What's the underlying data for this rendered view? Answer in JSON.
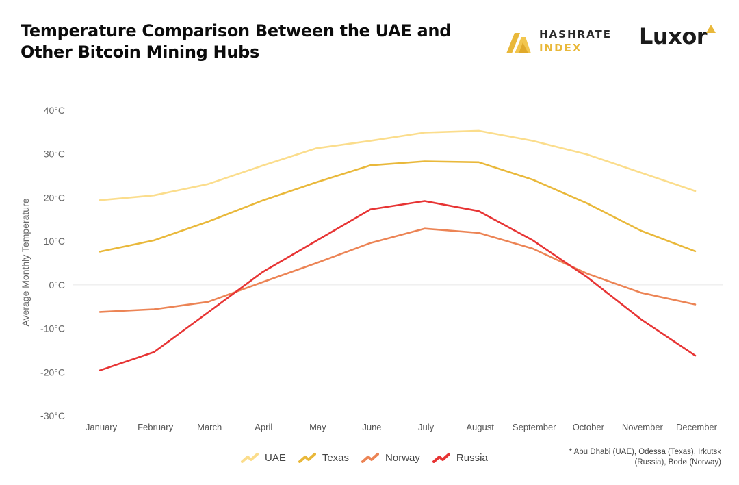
{
  "header": {
    "title_line1": "Temperature Comparison Between the UAE and",
    "title_line2": "Other Bitcoin Mining Hubs"
  },
  "logos": {
    "hashrate_line1": "HASHRATE",
    "hashrate_line2": "INDEX",
    "luxor": "Luxor"
  },
  "colors": {
    "uae": "#fbdd8c",
    "texas": "#e9b83a",
    "norway": "#ec8455",
    "russia": "#e73434",
    "axis_text": "#666666",
    "zero_line": "#e6e6e6"
  },
  "footnote": {
    "line1": "* Abu Dhabi (UAE), Odessa (Texas), Irkutsk",
    "line2": "(Russia), Bodø (Norway)"
  },
  "chart_data": {
    "type": "line",
    "title": "Temperature Comparison Between the UAE and Other Bitcoin Mining Hubs",
    "xlabel": "",
    "ylabel": "Average Monthly Temperature",
    "ylim": [
      -30,
      40
    ],
    "yticks": [
      40,
      30,
      20,
      10,
      0,
      -10,
      -20,
      -30
    ],
    "ytick_labels": [
      "40°C",
      "30°C",
      "20°C",
      "10°C",
      "0°C",
      "-10°C",
      "-20°C",
      "-30°C"
    ],
    "grid": false,
    "legend_position": "bottom-center",
    "categories": [
      "January",
      "February",
      "March",
      "April",
      "May",
      "June",
      "July",
      "August",
      "September",
      "October",
      "November",
      "December"
    ],
    "series": [
      {
        "name": "UAE",
        "color": "#fbdd8c",
        "values": [
          19.4,
          20.5,
          23.1,
          27.3,
          31.3,
          33.0,
          34.9,
          35.3,
          33.0,
          29.9,
          25.7,
          21.5
        ]
      },
      {
        "name": "Texas",
        "color": "#e9b83a",
        "values": [
          7.6,
          10.2,
          14.5,
          19.3,
          23.5,
          27.4,
          28.3,
          28.1,
          24.1,
          18.7,
          12.4,
          7.7
        ]
      },
      {
        "name": "Norway",
        "color": "#ec8455",
        "values": [
          -6.2,
          -5.6,
          -3.9,
          0.6,
          5.0,
          9.6,
          12.9,
          11.9,
          8.3,
          2.6,
          -1.8,
          -4.5
        ]
      },
      {
        "name": "Russia",
        "color": "#e73434",
        "values": [
          -19.6,
          -15.4,
          -6.3,
          2.9,
          10.1,
          17.3,
          19.2,
          16.9,
          10.2,
          1.8,
          -7.9,
          -16.2
        ]
      }
    ]
  }
}
